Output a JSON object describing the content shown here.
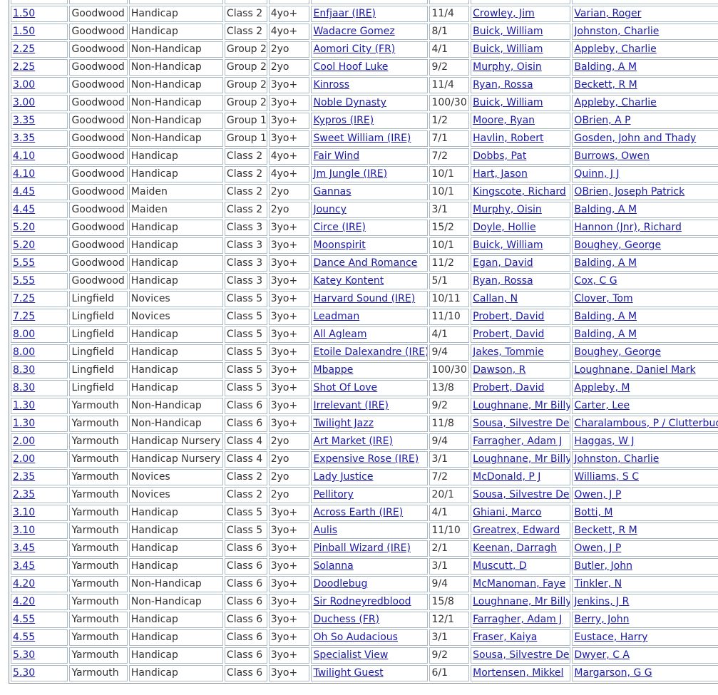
{
  "table": {
    "rows": [
      [
        "1.50",
        "Goodwood",
        "Handicap",
        "Class 2",
        "4yo+",
        "Enfjaar (IRE)",
        "11/4",
        "Crowley, Jim",
        "Varian, Roger"
      ],
      [
        "1.50",
        "Goodwood",
        "Handicap",
        "Class 2",
        "4yo+",
        "Wadacre Gomez",
        "8/1",
        "Buick, William",
        "Johnston, Charlie"
      ],
      [
        "2.25",
        "Goodwood",
        "Non-Handicap",
        "Group 2",
        "2yo",
        "Aomori City (FR)",
        "4/1",
        "Buick, William",
        "Appleby, Charlie"
      ],
      [
        "2.25",
        "Goodwood",
        "Non-Handicap",
        "Group 2",
        "2yo",
        "Cool Hoof Luke",
        "9/2",
        "Murphy, Oisin",
        "Balding, A M"
      ],
      [
        "3.00",
        "Goodwood",
        "Non-Handicap",
        "Group 2",
        "3yo+",
        "Kinross",
        "11/4",
        "Ryan, Rossa",
        "Beckett, R M"
      ],
      [
        "3.00",
        "Goodwood",
        "Non-Handicap",
        "Group 2",
        "3yo+",
        "Noble Dynasty",
        "100/30",
        "Buick, William",
        "Appleby, Charlie"
      ],
      [
        "3.35",
        "Goodwood",
        "Non-Handicap",
        "Group 1",
        "3yo+",
        "Kypros (IRE)",
        "1/2",
        "Moore, Ryan",
        "OBrien, A P"
      ],
      [
        "3.35",
        "Goodwood",
        "Non-Handicap",
        "Group 1",
        "3yo+",
        "Sweet William (IRE)",
        "7/1",
        "Havlin, Robert",
        "Gosden, John and Thady"
      ],
      [
        "4.10",
        "Goodwood",
        "Handicap",
        "Class 2",
        "4yo+",
        "Fair Wind",
        "7/2",
        "Dobbs, Pat",
        "Burrows, Owen"
      ],
      [
        "4.10",
        "Goodwood",
        "Handicap",
        "Class 2",
        "4yo+",
        "Jm Jungle (IRE)",
        "10/1",
        "Hart, Jason",
        "Quinn, J J"
      ],
      [
        "4.45",
        "Goodwood",
        "Maiden",
        "Class 2",
        "2yo",
        "Gannas",
        "10/1",
        "Kingscote, Richard",
        "OBrien, Joseph Patrick"
      ],
      [
        "4.45",
        "Goodwood",
        "Maiden",
        "Class 2",
        "2yo",
        "Jouncy",
        "3/1",
        "Murphy, Oisin",
        "Balding, A M"
      ],
      [
        "5.20",
        "Goodwood",
        "Handicap",
        "Class 3",
        "3yo+",
        "Circe (IRE)",
        "15/2",
        "Doyle, Hollie",
        "Hannon (Jnr), Richard"
      ],
      [
        "5.20",
        "Goodwood",
        "Handicap",
        "Class 3",
        "3yo+",
        "Moonspirit",
        "10/1",
        "Buick, William",
        "Boughey, George"
      ],
      [
        "5.55",
        "Goodwood",
        "Handicap",
        "Class 3",
        "3yo+",
        "Dance And Romance",
        "11/2",
        "Egan, David",
        "Balding, A M"
      ],
      [
        "5.55",
        "Goodwood",
        "Handicap",
        "Class 3",
        "3yo+",
        "Katey Kontent",
        "5/1",
        "Ryan, Rossa",
        "Cox, C G"
      ],
      [
        "7.25",
        "Lingfield",
        "Novices",
        "Class 5",
        "3yo+",
        "Harvard Sound (IRE)",
        "10/11",
        "Callan, N",
        "Clover, Tom"
      ],
      [
        "7.25",
        "Lingfield",
        "Novices",
        "Class 5",
        "3yo+",
        "Leadman",
        "11/10",
        "Probert, David",
        "Balding, A M"
      ],
      [
        "8.00",
        "Lingfield",
        "Handicap",
        "Class 5",
        "3yo+",
        "All Agleam",
        "4/1",
        "Probert, David",
        "Balding, A M"
      ],
      [
        "8.00",
        "Lingfield",
        "Handicap",
        "Class 5",
        "3yo+",
        "Etoile Dalexandre (IRE)",
        "9/4",
        "Jakes, Tommie",
        "Boughey, George"
      ],
      [
        "8.30",
        "Lingfield",
        "Handicap",
        "Class 5",
        "3yo+",
        "Mbappe",
        "100/30",
        "Dawson, R",
        "Loughnane, Daniel Mark"
      ],
      [
        "8.30",
        "Lingfield",
        "Handicap",
        "Class 5",
        "3yo+",
        "Shot Of Love",
        "13/8",
        "Probert, David",
        "Appleby, M"
      ],
      [
        "1.30",
        "Yarmouth",
        "Non-Handicap",
        "Class 6",
        "3yo+",
        "Irrelevant (IRE)",
        "9/2",
        "Loughnane, Mr Billy",
        "Carter, Lee"
      ],
      [
        "1.30",
        "Yarmouth",
        "Non-Handicap",
        "Class 6",
        "3yo+",
        "Twilight Jazz",
        "11/8",
        "Sousa, Silvestre De",
        "Charalambous, P / Clutterbuck, J"
      ],
      [
        "2.00",
        "Yarmouth",
        "Handicap Nursery",
        "Class 4",
        "2yo",
        "Art Market (IRE)",
        "9/4",
        "Farragher, Adam J",
        "Haggas, W J"
      ],
      [
        "2.00",
        "Yarmouth",
        "Handicap Nursery",
        "Class 4",
        "2yo",
        "Expensive Rose (IRE)",
        "3/1",
        "Loughnane, Mr Billy",
        "Johnston, Charlie"
      ],
      [
        "2.35",
        "Yarmouth",
        "Novices",
        "Class 2",
        "2yo",
        "Lady Justice",
        "7/2",
        "McDonald, P J",
        "Williams, S C"
      ],
      [
        "2.35",
        "Yarmouth",
        "Novices",
        "Class 2",
        "2yo",
        "Pellitory",
        "20/1",
        "Sousa, Silvestre De",
        "Owen, J P"
      ],
      [
        "3.10",
        "Yarmouth",
        "Handicap",
        "Class 5",
        "3yo+",
        "Across Earth (IRE)",
        "4/1",
        "Ghiani, Marco",
        "Botti, M"
      ],
      [
        "3.10",
        "Yarmouth",
        "Handicap",
        "Class 5",
        "3yo+",
        "Aulis",
        "11/10",
        "Greatrex, Edward",
        "Beckett, R M"
      ],
      [
        "3.45",
        "Yarmouth",
        "Handicap",
        "Class 6",
        "3yo+",
        "Pinball Wizard (IRE)",
        "2/1",
        "Keenan, Darragh",
        "Owen, J P"
      ],
      [
        "3.45",
        "Yarmouth",
        "Handicap",
        "Class 6",
        "3yo+",
        "Solanna",
        "3/1",
        "Muscutt, D",
        "Butler, John"
      ],
      [
        "4.20",
        "Yarmouth",
        "Non-Handicap",
        "Class 6",
        "3yo+",
        "Doodlebug",
        "9/4",
        "McManoman, Faye",
        "Tinkler, N"
      ],
      [
        "4.20",
        "Yarmouth",
        "Non-Handicap",
        "Class 6",
        "3yo+",
        "Sir Rodneyredblood",
        "15/8",
        "Loughnane, Mr Billy",
        "Jenkins, J R"
      ],
      [
        "4.55",
        "Yarmouth",
        "Handicap",
        "Class 6",
        "3yo+",
        "Duchess (FR)",
        "12/1",
        "Farragher, Adam J",
        "Berry, John"
      ],
      [
        "4.55",
        "Yarmouth",
        "Handicap",
        "Class 6",
        "3yo+",
        "Oh So Audacious",
        "3/1",
        "Fraser, Kaiya",
        "Eustace, Harry"
      ],
      [
        "5.30",
        "Yarmouth",
        "Handicap",
        "Class 6",
        "3yo+",
        "Specialist View",
        "9/2",
        "Sousa, Silvestre De",
        "Dwyer, C A"
      ],
      [
        "5.30",
        "Yarmouth",
        "Handicap",
        "Class 6",
        "3yo+",
        "Twilight Guest",
        "6/1",
        "Mortensen, Mikkel",
        "Margarson, G G"
      ]
    ]
  }
}
